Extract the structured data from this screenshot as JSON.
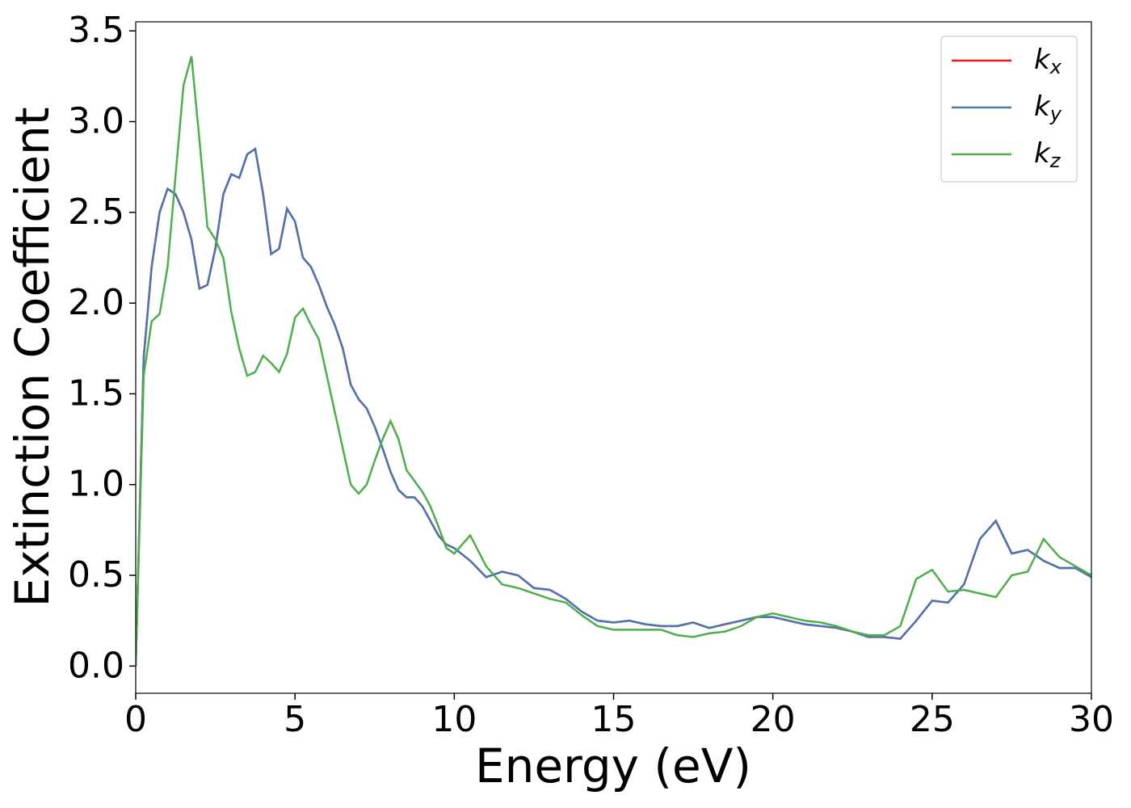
{
  "chart_data": {
    "type": "line",
    "xlabel": "Energy (eV)",
    "ylabel": "Extinction Coefficient",
    "x": [
      0,
      0.25,
      0.5,
      0.75,
      1,
      1.25,
      1.5,
      1.75,
      2,
      2.25,
      2.5,
      2.75,
      3,
      3.25,
      3.5,
      3.75,
      4,
      4.25,
      4.5,
      4.75,
      5,
      5.25,
      5.5,
      5.75,
      6,
      6.25,
      6.5,
      6.75,
      7,
      7.25,
      7.5,
      7.75,
      8,
      8.25,
      8.5,
      8.75,
      9,
      9.25,
      9.5,
      9.75,
      10,
      10.5,
      11,
      11.5,
      12,
      12.5,
      13,
      13.5,
      14,
      14.5,
      15,
      15.5,
      16,
      16.5,
      17,
      17.5,
      18,
      18.5,
      19,
      19.5,
      20,
      20.5,
      21,
      21.5,
      22,
      22.5,
      23,
      23.5,
      24,
      24.5,
      25,
      25.5,
      26,
      26.5,
      27,
      27.5,
      28,
      28.5,
      29,
      29.5,
      30
    ],
    "series": [
      {
        "name": "kx",
        "color": "#e41a1c",
        "values": [
          0,
          1.7,
          2.2,
          2.5,
          2.63,
          2.6,
          2.5,
          2.35,
          2.08,
          2.1,
          2.3,
          2.6,
          2.71,
          2.69,
          2.82,
          2.85,
          2.6,
          2.27,
          2.3,
          2.52,
          2.45,
          2.25,
          2.2,
          2.1,
          1.98,
          1.88,
          1.75,
          1.55,
          1.47,
          1.42,
          1.32,
          1.2,
          1.07,
          0.97,
          0.93,
          0.93,
          0.88,
          0.8,
          0.72,
          0.67,
          0.65,
          0.58,
          0.49,
          0.52,
          0.5,
          0.43,
          0.42,
          0.37,
          0.3,
          0.25,
          0.24,
          0.25,
          0.23,
          0.22,
          0.22,
          0.24,
          0.21,
          0.23,
          0.25,
          0.27,
          0.27,
          0.25,
          0.23,
          0.22,
          0.21,
          0.19,
          0.16,
          0.16,
          0.15,
          0.25,
          0.36,
          0.35,
          0.45,
          0.7,
          0.8,
          0.62,
          0.64,
          0.58,
          0.54,
          0.54,
          0.49
        ]
      },
      {
        "name": "ky",
        "color": "#4a76b2",
        "values": [
          0,
          1.7,
          2.2,
          2.5,
          2.63,
          2.6,
          2.5,
          2.35,
          2.08,
          2.1,
          2.3,
          2.6,
          2.71,
          2.69,
          2.82,
          2.85,
          2.6,
          2.27,
          2.3,
          2.52,
          2.45,
          2.25,
          2.2,
          2.1,
          1.98,
          1.88,
          1.75,
          1.55,
          1.47,
          1.42,
          1.32,
          1.2,
          1.07,
          0.97,
          0.93,
          0.93,
          0.88,
          0.8,
          0.72,
          0.67,
          0.65,
          0.58,
          0.49,
          0.52,
          0.5,
          0.43,
          0.42,
          0.37,
          0.3,
          0.25,
          0.24,
          0.25,
          0.23,
          0.22,
          0.22,
          0.24,
          0.21,
          0.23,
          0.25,
          0.27,
          0.27,
          0.25,
          0.23,
          0.22,
          0.21,
          0.19,
          0.16,
          0.16,
          0.15,
          0.25,
          0.36,
          0.35,
          0.45,
          0.7,
          0.8,
          0.62,
          0.64,
          0.58,
          0.54,
          0.54,
          0.49
        ]
      },
      {
        "name": "kz",
        "color": "#4daf4a",
        "values": [
          0,
          1.6,
          1.9,
          1.94,
          2.2,
          2.7,
          3.2,
          3.36,
          2.9,
          2.42,
          2.35,
          2.25,
          1.95,
          1.75,
          1.6,
          1.62,
          1.71,
          1.67,
          1.62,
          1.72,
          1.92,
          1.97,
          1.88,
          1.8,
          1.6,
          1.4,
          1.2,
          1.0,
          0.95,
          1.0,
          1.13,
          1.25,
          1.35,
          1.25,
          1.08,
          1.02,
          0.96,
          0.88,
          0.77,
          0.65,
          0.62,
          0.72,
          0.55,
          0.45,
          0.43,
          0.4,
          0.37,
          0.35,
          0.28,
          0.22,
          0.2,
          0.2,
          0.2,
          0.2,
          0.17,
          0.16,
          0.18,
          0.19,
          0.22,
          0.27,
          0.29,
          0.27,
          0.25,
          0.24,
          0.22,
          0.19,
          0.17,
          0.17,
          0.22,
          0.48,
          0.53,
          0.41,
          0.42,
          0.4,
          0.38,
          0.5,
          0.52,
          0.7,
          0.6,
          0.55,
          0.5
        ]
      }
    ],
    "xlim": [
      0,
      30
    ],
    "xticks": [
      0,
      5,
      10,
      15,
      20,
      25,
      30
    ],
    "ylim": [
      -0.15,
      3.55
    ],
    "yticks": [
      {
        "value": 0,
        "label": "0.0"
      },
      0.5,
      {
        "value": 1,
        "label": "1.0"
      },
      1.5,
      {
        "value": 2,
        "label": "2.0"
      },
      2.5,
      {
        "value": 3,
        "label": "3.0"
      },
      3.5
    ],
    "grid": false,
    "legend": "upper right"
  }
}
